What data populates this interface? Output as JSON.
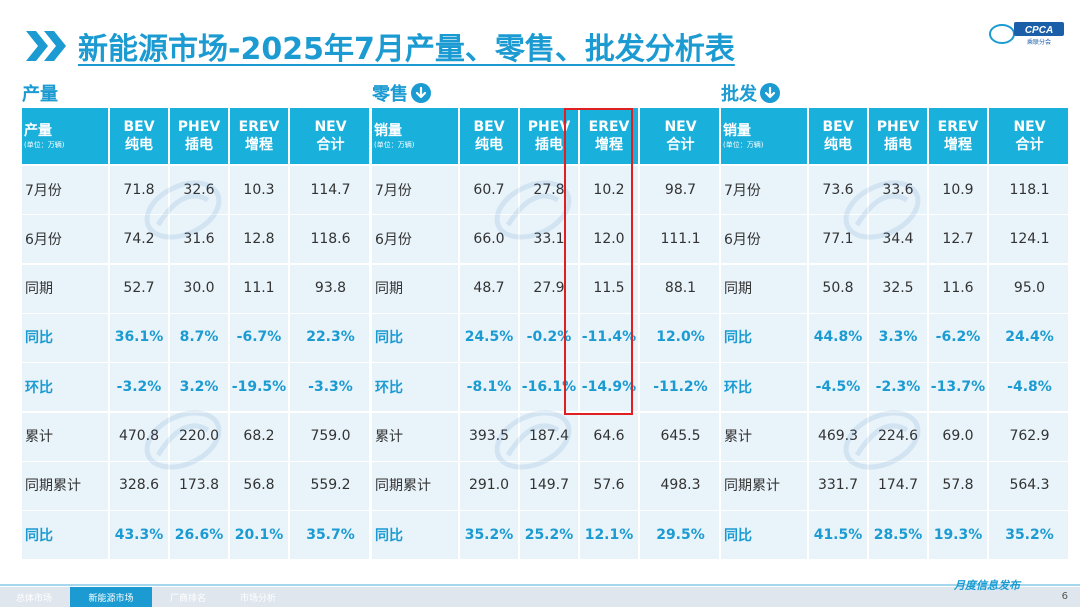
{
  "title": "新能源市场-2025年7月产量、零售、批发分析表",
  "logo_text": "CPCA",
  "logo_sub": "乘联分会",
  "colors": {
    "accent": "#1b9bd1",
    "header_bg": "#1ab0dc",
    "highlight": "#e02020"
  },
  "sections": [
    {
      "title": "产量",
      "has_icon": false,
      "header_first": "产量",
      "header_unit": "(单位：万辆)",
      "columns": [
        [
          "BEV",
          "纯电"
        ],
        [
          "PHEV",
          "插电"
        ],
        [
          "EREV",
          "增程"
        ],
        [
          "NEV",
          "合计"
        ]
      ],
      "rows": [
        {
          "label": "7月份",
          "values": [
            "71.8",
            "32.6",
            "10.3",
            "114.7"
          ],
          "pct": false
        },
        {
          "label": "6月份",
          "values": [
            "74.2",
            "31.6",
            "12.8",
            "118.6"
          ],
          "pct": false
        },
        {
          "label": "同期",
          "values": [
            "52.7",
            "30.0",
            "11.1",
            "93.8"
          ],
          "pct": false
        },
        {
          "label": "同比",
          "values": [
            "36.1%",
            "8.7%",
            "-6.7%",
            "22.3%"
          ],
          "pct": true
        },
        {
          "label": "环比",
          "values": [
            "-3.2%",
            "3.2%",
            "-19.5%",
            "-3.3%"
          ],
          "pct": true
        },
        {
          "label": "累计",
          "values": [
            "470.8",
            "220.0",
            "68.2",
            "759.0"
          ],
          "pct": false
        },
        {
          "label": "同期累计",
          "values": [
            "328.6",
            "173.8",
            "56.8",
            "559.2"
          ],
          "pct": false
        },
        {
          "label": "同比",
          "values": [
            "43.3%",
            "26.6%",
            "20.1%",
            "35.7%"
          ],
          "pct": true
        }
      ]
    },
    {
      "title": "零售",
      "has_icon": true,
      "header_first": "销量",
      "header_unit": "(单位：万辆)",
      "columns": [
        [
          "BEV",
          "纯电"
        ],
        [
          "PHEV",
          "插电"
        ],
        [
          "EREV",
          "增程"
        ],
        [
          "NEV",
          "合计"
        ]
      ],
      "rows": [
        {
          "label": "7月份",
          "values": [
            "60.7",
            "27.8",
            "10.2",
            "98.7"
          ],
          "pct": false
        },
        {
          "label": "6月份",
          "values": [
            "66.0",
            "33.1",
            "12.0",
            "111.1"
          ],
          "pct": false
        },
        {
          "label": "同期",
          "values": [
            "48.7",
            "27.9",
            "11.5",
            "88.1"
          ],
          "pct": false
        },
        {
          "label": "同比",
          "values": [
            "24.5%",
            "-0.2%",
            "-11.4%",
            "12.0%"
          ],
          "pct": true
        },
        {
          "label": "环比",
          "values": [
            "-8.1%",
            "-16.1%",
            "-14.9%",
            "-11.2%"
          ],
          "pct": true
        },
        {
          "label": "累计",
          "values": [
            "393.5",
            "187.4",
            "64.6",
            "645.5"
          ],
          "pct": false
        },
        {
          "label": "同期累计",
          "values": [
            "291.0",
            "149.7",
            "57.6",
            "498.3"
          ],
          "pct": false
        },
        {
          "label": "同比",
          "values": [
            "35.2%",
            "25.2%",
            "12.1%",
            "29.5%"
          ],
          "pct": true
        }
      ]
    },
    {
      "title": "批发",
      "has_icon": true,
      "header_first": "销量",
      "header_unit": "(单位：万辆)",
      "columns": [
        [
          "BEV",
          "纯电"
        ],
        [
          "PHEV",
          "插电"
        ],
        [
          "EREV",
          "增程"
        ],
        [
          "NEV",
          "合计"
        ]
      ],
      "rows": [
        {
          "label": "7月份",
          "values": [
            "73.6",
            "33.6",
            "10.9",
            "118.1"
          ],
          "pct": false
        },
        {
          "label": "6月份",
          "values": [
            "77.1",
            "34.4",
            "12.7",
            "124.1"
          ],
          "pct": false
        },
        {
          "label": "同期",
          "values": [
            "50.8",
            "32.5",
            "11.6",
            "95.0"
          ],
          "pct": false
        },
        {
          "label": "同比",
          "values": [
            "44.8%",
            "3.3%",
            "-6.2%",
            "24.4%"
          ],
          "pct": true
        },
        {
          "label": "环比",
          "values": [
            "-4.5%",
            "-2.3%",
            "-13.7%",
            "-4.8%"
          ],
          "pct": true
        },
        {
          "label": "累计",
          "values": [
            "469.3",
            "224.6",
            "69.0",
            "762.9"
          ],
          "pct": false
        },
        {
          "label": "同期累计",
          "values": [
            "331.7",
            "174.7",
            "57.8",
            "564.3"
          ],
          "pct": false
        },
        {
          "label": "同比",
          "values": [
            "41.5%",
            "28.5%",
            "19.3%",
            "35.2%"
          ],
          "pct": true
        }
      ]
    }
  ],
  "footer": {
    "tabs": [
      "总体市场",
      "新能源市场",
      "厂商排名",
      "市场分析"
    ],
    "active_tab": 1,
    "right_text": "月度信息发布",
    "page_number": "6"
  }
}
